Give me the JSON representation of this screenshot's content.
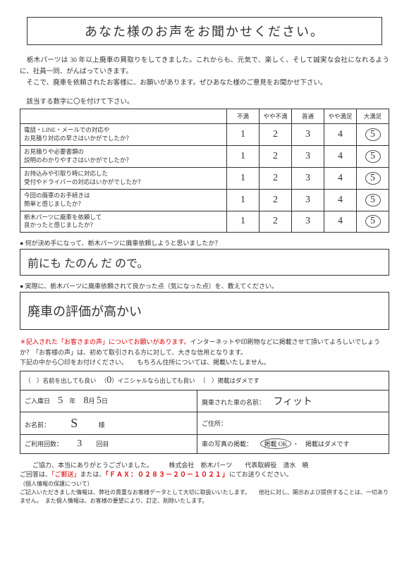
{
  "title": "あなた様のお声をお聞かせください。",
  "intro": "　栃木パーツは 30 年以上廃車の買取りをしてきました。これからも、元気で、楽しく、そして誠実な会社になれるように、社員一同、がんばっていきます。\n　そこで、廃車を依頼されたお客様に、お願いがあります。ぜひあなた様のご意見をお聞かせ下さい。",
  "instruction": "　該当する数字に〇を付けて下さい。",
  "headers": [
    "不満",
    "やや不満",
    "普通",
    "やや満足",
    "大満足"
  ],
  "questions": [
    "電話・LINE・メールでの対応や\nお見積り対応の早さはいかがでしたか？",
    "お見積りや必要書類の\n説明のわかりやすさはいかがでしたか？",
    "お持込みや引取り時に対応した\n受付やドライバーの対応はいかがでしたか？",
    "今回の廃車のお手続きは\n簡単と感じましたか？",
    "栃木パーツに廃車を依頼して\n良かったと感じましたか？"
  ],
  "scale": [
    "1",
    "2",
    "3",
    "4",
    "5"
  ],
  "answers": [
    4,
    4,
    4,
    4,
    4
  ],
  "q_free1": "何が決め手になって、栃木パーツに廃車依頼しようと思いましたか？",
  "a_free1": "前にも たのん だ ので。",
  "q_free2": "実際に、栃木パーツに廃車依頼されて良かった点（気になった点）を、教えてください。",
  "a_free2": "廃車の評価が高かい",
  "red_lead": "＊記入された「お客さまの声」についてお願いがあります。",
  "red_rest": "インターネットや印刷物などに掲載させて頂いてよろしいでしょうか？「お客様の声」は、初めて取引される方に対して、大きな信用となります。",
  "pub_instr": "下記の中から〇印をお付けください。　　もちろん住所については、掲載いたしません。",
  "pub_opts_a": "名前を出しても良い",
  "pub_opts_b": "イニシャルなら出しても良い",
  "pub_opts_c": "掲載はダメです",
  "pub_selected": 1,
  "info": {
    "date_label": "ご入庫日",
    "date_y": "5",
    "date_m": "8",
    "date_d": "5",
    "car_label": "廃車された車の名前：",
    "car": "フィット",
    "name_label": "お名前：",
    "name": "S",
    "name_suffix": "様",
    "addr_label": "ご住所：",
    "uses_label": "ご利用回数：",
    "uses": "3",
    "uses_suffix": "回目",
    "photo_label": "車の写真の掲載：",
    "photo_ok": "掲載 OK",
    "photo_ng": "掲載はダメです"
  },
  "footer": {
    "thanks": "　　ご協力、本当にありがとうございました。　　　株式会社　栃木パーツ　　代表取締役　清水　暁",
    "reply_lead": "ご回答は、",
    "reply_mail": "「ご郵送」",
    "reply_mid": "または、",
    "reply_fax": "「ＦＡＸ：０２８３－２０－１０２１」",
    "reply_tail": "にてお送りください。",
    "privacy_h": "（個人情報の保護について）",
    "privacy": "ご記入いただきました情報は、弊社の貴重なお客様データとして大切に取扱いいたします。　　他社に対し、開示および提供することは、一切ありません。　また個人情報は、お客様の要望により、訂正、削除いたします。"
  },
  "colors": {
    "text": "#333333",
    "red": "#dd0000",
    "border": "#333333",
    "bg": "#fefefe"
  }
}
